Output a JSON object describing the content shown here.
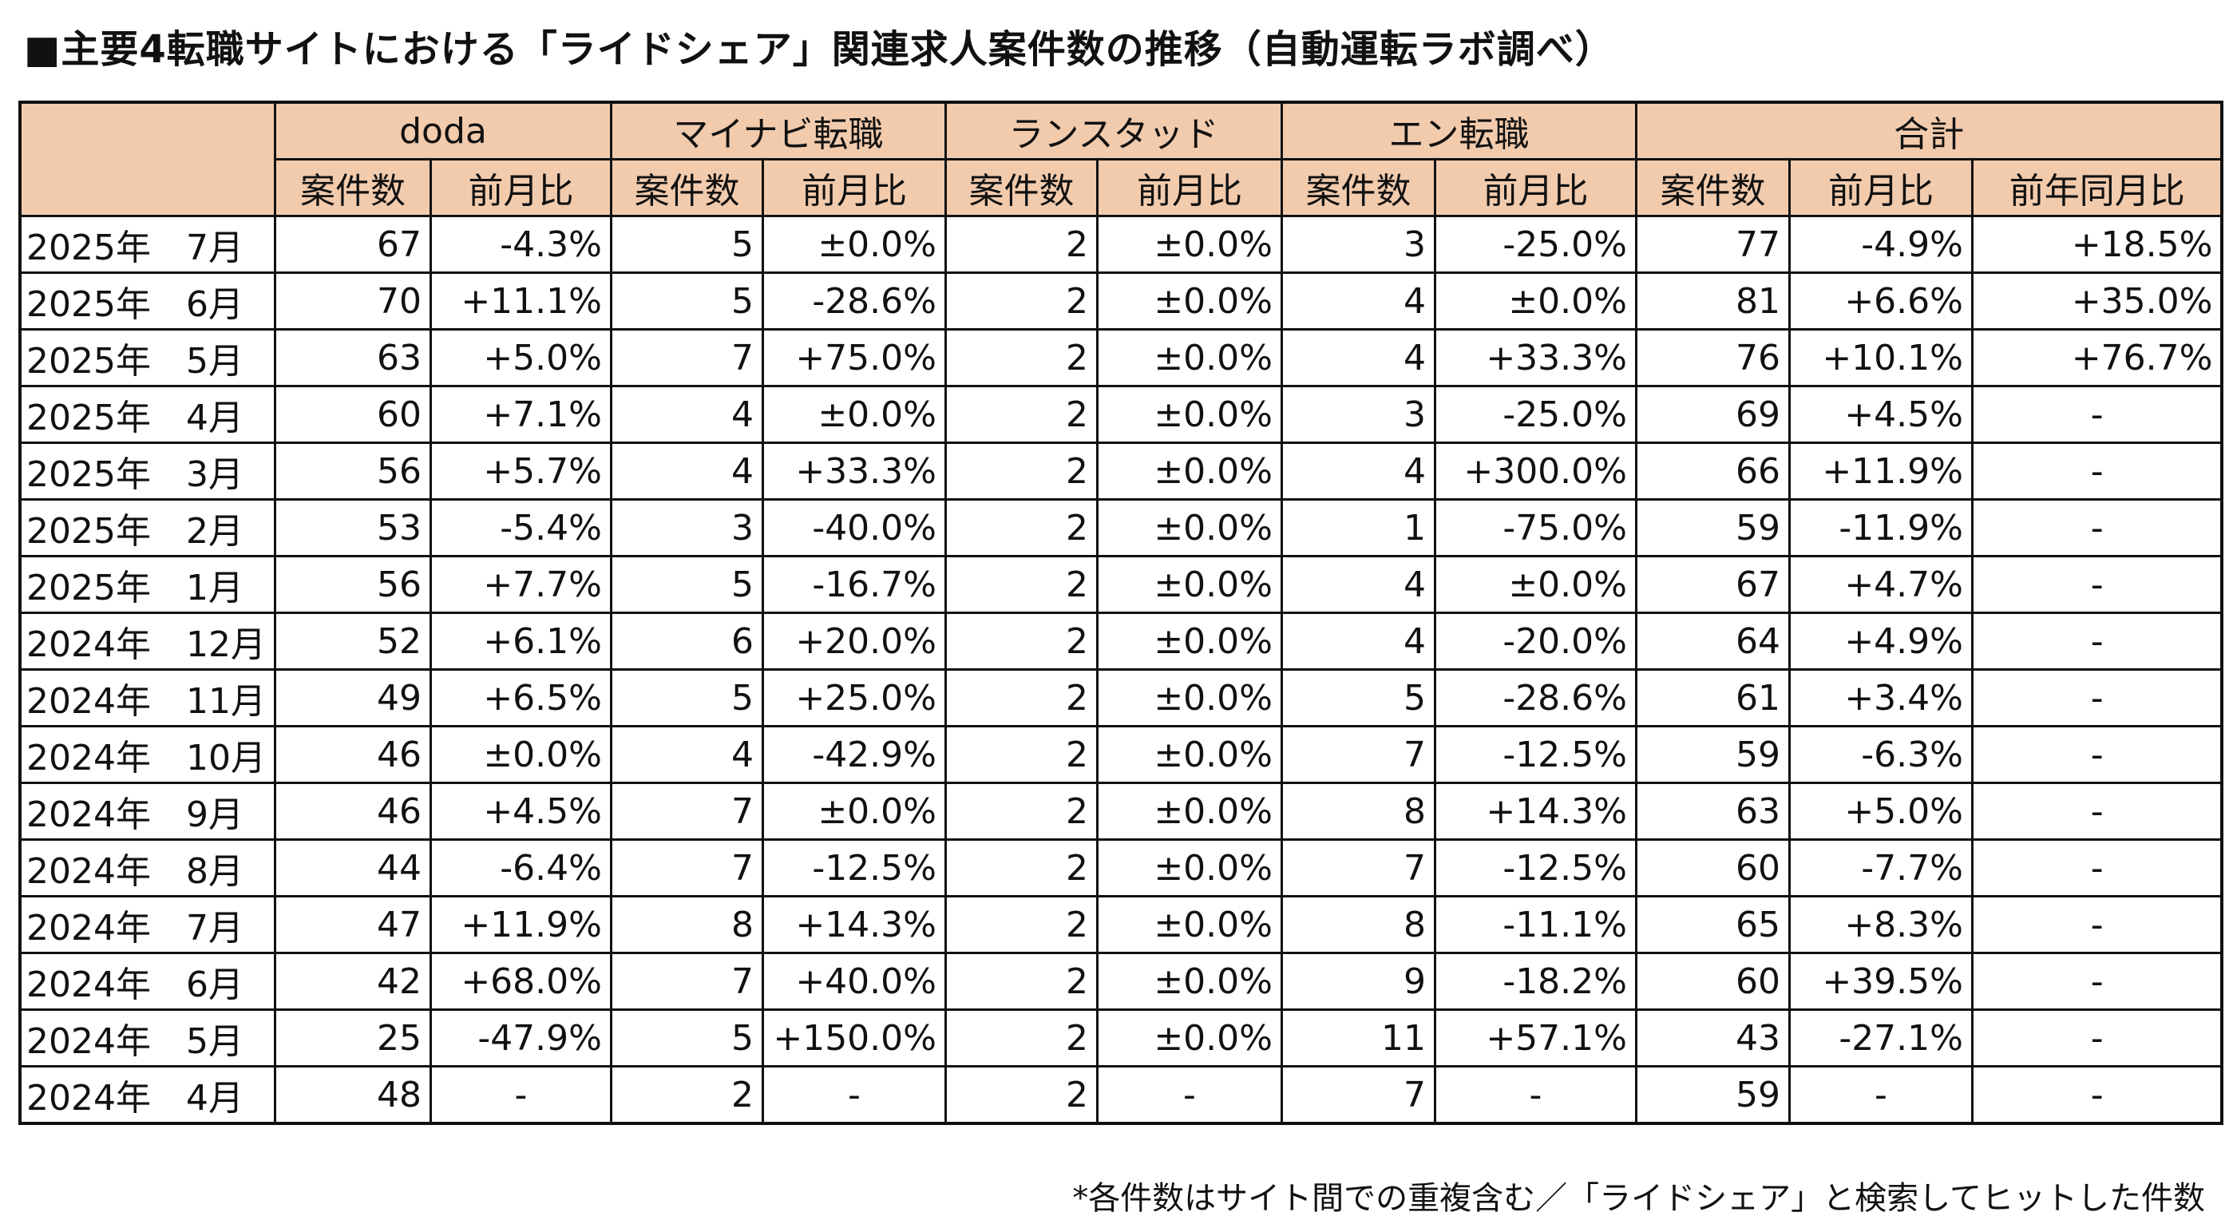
{
  "title": "■主要4転職サイトにおける「ライドシェア」関連求人案件数の推移（自動運転ラボ調べ）",
  "header": {
    "sites": [
      "doda",
      "マイナビ転職",
      "ランスタッド",
      "エン転職",
      "合計"
    ],
    "sub": [
      "案件数",
      "前月比",
      "案件数",
      "前月比",
      "案件数",
      "前月比",
      "案件数",
      "前月比",
      "案件数",
      "前月比",
      "前年同月比"
    ]
  },
  "rows": [
    {
      "label": "2025年　7月",
      "cells": [
        "67",
        "-4.3%",
        "5",
        "±0.0%",
        "2",
        "±0.0%",
        "3",
        "-25.0%",
        "77",
        "-4.9%",
        "+18.5%"
      ]
    },
    {
      "label": "2025年　6月",
      "cells": [
        "70",
        "+11.1%",
        "5",
        "-28.6%",
        "2",
        "±0.0%",
        "4",
        "±0.0%",
        "81",
        "+6.6%",
        "+35.0%"
      ]
    },
    {
      "label": "2025年　5月",
      "cells": [
        "63",
        "+5.0%",
        "7",
        "+75.0%",
        "2",
        "±0.0%",
        "4",
        "+33.3%",
        "76",
        "+10.1%",
        "+76.7%"
      ]
    },
    {
      "label": "2025年　4月",
      "cells": [
        "60",
        "+7.1%",
        "4",
        "±0.0%",
        "2",
        "±0.0%",
        "3",
        "-25.0%",
        "69",
        "+4.5%",
        "-"
      ]
    },
    {
      "label": "2025年　3月",
      "cells": [
        "56",
        "+5.7%",
        "4",
        "+33.3%",
        "2",
        "±0.0%",
        "4",
        "+300.0%",
        "66",
        "+11.9%",
        "-"
      ]
    },
    {
      "label": "2025年　2月",
      "cells": [
        "53",
        "-5.4%",
        "3",
        "-40.0%",
        "2",
        "±0.0%",
        "1",
        "-75.0%",
        "59",
        "-11.9%",
        "-"
      ]
    },
    {
      "label": "2025年　1月",
      "cells": [
        "56",
        "+7.7%",
        "5",
        "-16.7%",
        "2",
        "±0.0%",
        "4",
        "±0.0%",
        "67",
        "+4.7%",
        "-"
      ]
    },
    {
      "label": "2024年　12月",
      "cells": [
        "52",
        "+6.1%",
        "6",
        "+20.0%",
        "2",
        "±0.0%",
        "4",
        "-20.0%",
        "64",
        "+4.9%",
        "-"
      ]
    },
    {
      "label": "2024年　11月",
      "cells": [
        "49",
        "+6.5%",
        "5",
        "+25.0%",
        "2",
        "±0.0%",
        "5",
        "-28.6%",
        "61",
        "+3.4%",
        "-"
      ]
    },
    {
      "label": "2024年　10月",
      "cells": [
        "46",
        "±0.0%",
        "4",
        "-42.9%",
        "2",
        "±0.0%",
        "7",
        "-12.5%",
        "59",
        "-6.3%",
        "-"
      ]
    },
    {
      "label": "2024年　9月",
      "cells": [
        "46",
        "+4.5%",
        "7",
        "±0.0%",
        "2",
        "±0.0%",
        "8",
        "+14.3%",
        "63",
        "+5.0%",
        "-"
      ]
    },
    {
      "label": "2024年　8月",
      "cells": [
        "44",
        "-6.4%",
        "7",
        "-12.5%",
        "2",
        "±0.0%",
        "7",
        "-12.5%",
        "60",
        "-7.7%",
        "-"
      ]
    },
    {
      "label": "2024年　7月",
      "cells": [
        "47",
        "+11.9%",
        "8",
        "+14.3%",
        "2",
        "±0.0%",
        "8",
        "-11.1%",
        "65",
        "+8.3%",
        "-"
      ]
    },
    {
      "label": "2024年　6月",
      "cells": [
        "42",
        "+68.0%",
        "7",
        "+40.0%",
        "2",
        "±0.0%",
        "9",
        "-18.2%",
        "60",
        "+39.5%",
        "-"
      ]
    },
    {
      "label": "2024年　5月",
      "cells": [
        "25",
        "-47.9%",
        "5",
        "+150.0%",
        "2",
        "±0.0%",
        "11",
        "+57.1%",
        "43",
        "-27.1%",
        "-"
      ]
    },
    {
      "label": "2024年　4月",
      "cells": [
        "48",
        "-",
        "2",
        "-",
        "2",
        "-",
        "7",
        "-",
        "59",
        "-",
        "-"
      ]
    }
  ],
  "footnote": "*各件数はサイト間での重複含む／「ライドシェア」と検索してヒットした件数",
  "colors": {
    "header_bg": "#f2cbad",
    "border": "#111111"
  }
}
